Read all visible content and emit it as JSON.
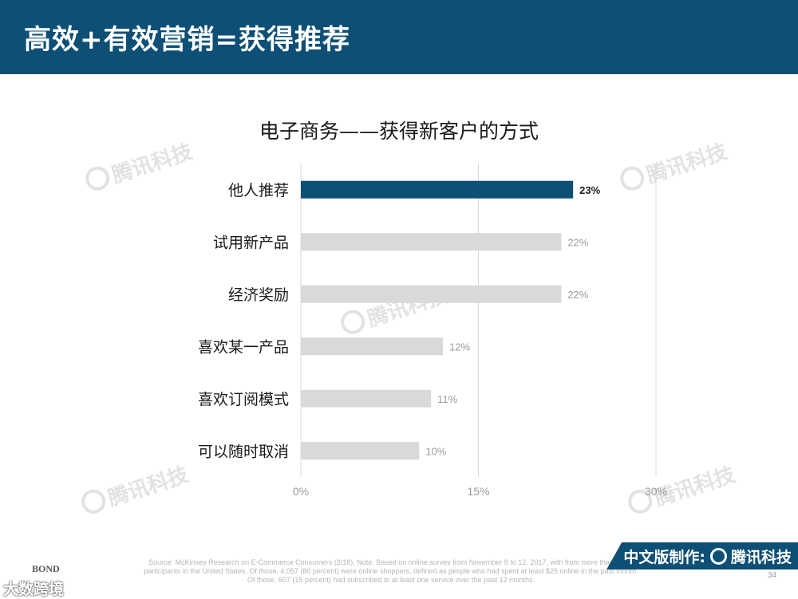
{
  "header": {
    "title": "高效+有效营销=获得推荐"
  },
  "watermarks": {
    "text": "腾讯科技"
  },
  "chart_data": {
    "type": "bar",
    "orientation": "horizontal",
    "title": "电子商务——获得新客户的方式",
    "categories": [
      "他人推荐",
      "试用新产品",
      "经济奖励",
      "喜欢某一产品",
      "喜欢订阅模式",
      "可以随时取消"
    ],
    "values": [
      23,
      22,
      22,
      12,
      11,
      10
    ],
    "value_labels": [
      "23%",
      "22%",
      "22%",
      "12%",
      "11%",
      "10%"
    ],
    "x_ticks": [
      "0%",
      "15%",
      "30%"
    ],
    "x_tick_values": [
      0,
      15,
      30
    ],
    "xlim": [
      0,
      30
    ],
    "grid": "vertical",
    "highlight_index": 0,
    "colors": {
      "highlight": "#0d4f75",
      "default": "#d9d9d9",
      "grid": "#d9d9d9",
      "tick": "#9a9a9a"
    }
  },
  "footer": {
    "source": "Source: McKinsey Research on E-Commerce Consumers (2/18). Note: Based on online survey from November 8 to 12, 2017, with from more than 5,093 participants in the United States. Of those, 4,057 (80 percent) were online shoppers, defined as people who had spent at least $25 online in the past month. Of those, 607 (15 percent) had subscribed to at least one service over the past 12 months.",
    "banner": "中文版制作:",
    "brand": "腾讯科技",
    "page_number": "34",
    "bond_logo": "BOND",
    "corner_watermark": "大数跨境"
  }
}
